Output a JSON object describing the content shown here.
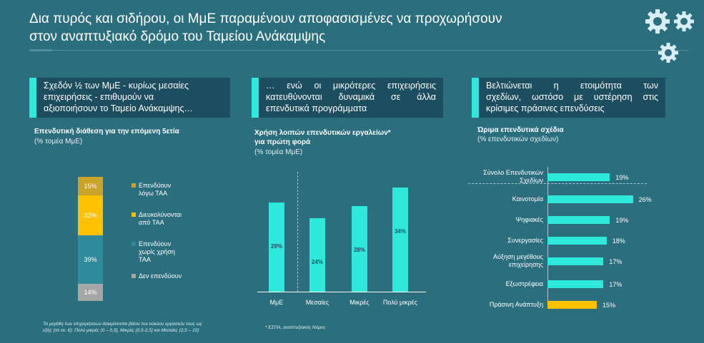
{
  "header": {
    "title_line1": "Δια πυρός και σιδήρου, οι ΜμΕ παραμένουν αποφασισμένες να προχωρήσουν",
    "title_line2": "στον αναπτυξιακό δρόμο του Ταμείου Ανάκαμψης"
  },
  "colors": {
    "background": "#2b6e7e",
    "callout_bg": "#1d4e60",
    "accent_cyan": "#2ee8dc",
    "seg_dark_gold": "#c9a227",
    "seg_yellow": "#ffc000",
    "seg_teal": "#2f8a9c",
    "seg_grey": "#a6a6a6"
  },
  "panel1": {
    "callout": [
      "Σχεδόν ½ των ΜμΕ - κυρίως μεσαίες",
      "επιχειρήσεις - επιθυμούν να",
      "αξιοποιήσουν το Ταμείο Ανάκαμψης…"
    ],
    "chart_title": "Επενδυτική διάθεση για την επόμενη 5ετία",
    "chart_subtitle": "(% τομέα ΜμΕ)",
    "footnote_line1": "Τα μεγέθη των επιχειρήσεων διακρίνονται βάσει του κύκλου εργασιών τους ως",
    "footnote_line2": "εξής (σε εκ. €): Πολύ μικρές (0 – 0,5], Μικρές (0,5-2,5] και Μεσαίες (2,5 – 10]"
  },
  "panel2": {
    "callout": [
      "… ενώ οι μικρότερες επιχειρήσεις",
      "κατευθύνονται δυναμικά σε άλλα",
      "επενδυτικά προγράμματα"
    ],
    "chart_title_line1": "Χρήση λοιπών επενδυτικών εργαλείων*",
    "chart_title_line2": "για πρώτη φορά",
    "chart_subtitle": "(% τομέα ΜμΕ)",
    "footnote": "* ΕΣΠΑ, αναπτυξιακός Νόμος"
  },
  "panel3": {
    "callout": [
      "Βελτιώνεται η ετοιμότητα των",
      "σχεδίων, ωστόσο με υστέρηση στις",
      "κρίσιμες πράσινες επενδύσεις"
    ],
    "chart_title": "Ώριμα επενδυτικά σχέδια",
    "chart_subtitle": "(% επενδυτικών σχεδίων)"
  },
  "chart_data": [
    {
      "type": "bar",
      "stacked": true,
      "title": "Επενδυτική διάθεση για την επόμενη 5ετία",
      "subtitle": "(% τομέα ΜμΕ)",
      "series": [
        {
          "name": "Επενδύουν λόγω ΤΑΑ",
          "name_lines": [
            "Επενδύουν",
            "λόγω ΤΑΑ"
          ],
          "value": 15,
          "label": "15%",
          "color": "#c9a227"
        },
        {
          "name": "Διευκολύνονται από ΤΑΑ",
          "name_lines": [
            "Διευκολύνονται",
            "από ΤΑΑ"
          ],
          "value": 32,
          "label": "32%",
          "color": "#ffc000"
        },
        {
          "name": "Επενδύουν χωρίς χρήση ΤΑΑ",
          "name_lines": [
            "Επενδύουν",
            "χωρίς χρήση",
            "ΤΑΑ"
          ],
          "value": 39,
          "label": "39%",
          "color": "#2f8a9c"
        },
        {
          "name": "Δεν επενδύουν",
          "name_lines": [
            "Δεν επενδύουν"
          ],
          "value": 14,
          "label": "14%",
          "color": "#a6a6a6"
        }
      ],
      "legend": "right"
    },
    {
      "type": "bar",
      "title": "Χρήση λοιπών επενδυτικών εργαλείων* για πρώτη φορά",
      "subtitle": "(% τομέα ΜμΕ)",
      "categories": [
        "ΜμΕ",
        "Μεσαίες",
        "Μικρές",
        "Πολύ μικρές"
      ],
      "values": [
        29,
        24,
        28,
        34
      ],
      "labels": [
        "29%",
        "24%",
        "28%",
        "34%"
      ],
      "color": "#2ee8dc"
    },
    {
      "type": "bar",
      "orientation": "horizontal",
      "title": "Ώριμα επενδυτικά σχέδια",
      "subtitle": "(% επενδυτικών σχεδίων)",
      "categories": [
        "Σύνολο Επενδυτικών Σχεδίων",
        "Καινοτομία",
        "Ψηφιακές",
        "Συνεργασίες",
        "Αύξηση μεγέθους επιχείρησης",
        "Εξωστρέφεια",
        "Πράσινη Ανάπτυξη"
      ],
      "category_lines": [
        [
          "Σύνολο Επενδυτικών",
          "Σχεδίων"
        ],
        [
          "Καινοτομία"
        ],
        [
          "Ψηφιακές"
        ],
        [
          "Συνεργασίες"
        ],
        [
          "Αύξηση μεγέθους",
          "επιχείρησης"
        ],
        [
          "Εξωστρέφεια"
        ],
        [
          "Πράσινη Ανάπτυξη"
        ]
      ],
      "values": [
        19,
        26,
        19,
        18,
        17,
        17,
        15
      ],
      "labels": [
        "19%",
        "26%",
        "19%",
        "18%",
        "17%",
        "17%",
        "15%"
      ],
      "colors": [
        "#2ee8dc",
        "#2ee8dc",
        "#2ee8dc",
        "#2ee8dc",
        "#2ee8dc",
        "#2ee8dc",
        "#ffc000"
      ]
    }
  ]
}
